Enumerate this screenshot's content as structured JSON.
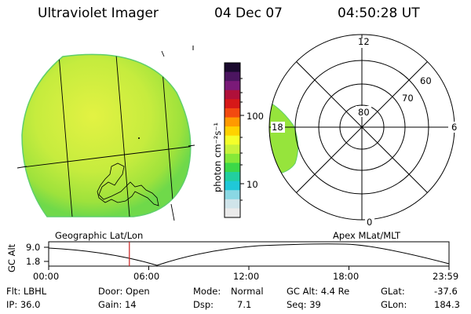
{
  "header": {
    "instrument": "Ultraviolet Imager",
    "date": "04 Dec 07",
    "time": "04:50:28 UT"
  },
  "colorbar": {
    "unit": "photon cm⁻²s⁻¹",
    "ticks": [
      "100",
      "10"
    ],
    "colors": [
      "#1a0a2e",
      "#4b1560",
      "#7a1a78",
      "#b0103a",
      "#d61818",
      "#f24a10",
      "#ff9a00",
      "#ffd200",
      "#f4ff2a",
      "#c8f23a",
      "#86e838",
      "#3cd848",
      "#22cfa0",
      "#20c8d8",
      "#8ad8e4",
      "#d0e4ea",
      "#ebebeb"
    ]
  },
  "polar": {
    "label_12": "12",
    "label_18": "18",
    "label_6": "6",
    "label_0": "0",
    "lat_labels": [
      "60",
      "70",
      "80"
    ]
  },
  "captions": {
    "left": "Geographic Lat/Lon",
    "right": "Apex MLat/MLT"
  },
  "altitude_plot": {
    "ylabel": "GC Alt",
    "yticks": [
      "9.0",
      "1.8"
    ],
    "xticks": [
      "00:00",
      "06:00",
      "12:00",
      "18:00",
      "23:59"
    ],
    "marker_time": "04:50",
    "marker_color": "#cc2020"
  },
  "info": {
    "filter": "Flt: LBHL",
    "door": "Door: Open",
    "mode_label": "Mode:",
    "mode_value": "Normal",
    "gc_alt": "GC Alt: 4.4 Re",
    "glat_label": "GLat:",
    "glat_value": "-37.6",
    "ip": "IP: 36.0",
    "gain": "Gain: 14",
    "dsp_label": "Dsp:",
    "dsp_value": "7.1",
    "seq": "Seq: 39",
    "glon_label": "GLon:",
    "glon_value": "184.3"
  }
}
